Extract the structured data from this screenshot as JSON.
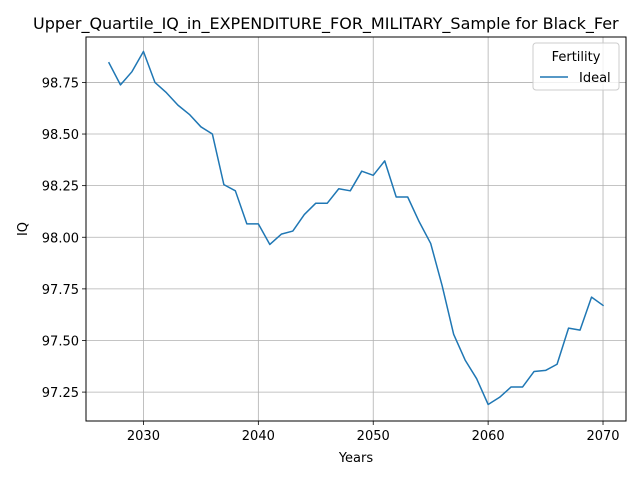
{
  "chart_data": {
    "type": "line",
    "title": "Upper_Quartile_IQ_in_EXPENDITURE_FOR_MILITARY_Sample for Black_Fer",
    "xlabel": "Years",
    "ylabel": "IQ",
    "xlim": [
      2025,
      2072
    ],
    "ylim": [
      97.11,
      98.97
    ],
    "xticks": [
      2030,
      2040,
      2050,
      2060,
      2070
    ],
    "yticks": [
      97.25,
      97.5,
      97.75,
      98.0,
      98.25,
      98.5,
      98.75
    ],
    "ytick_labels": [
      "97.25",
      "97.50",
      "97.75",
      "98.00",
      "98.25",
      "98.50",
      "98.75"
    ],
    "grid": true,
    "legend": {
      "title": "Fertility",
      "position": "top-right"
    },
    "series": [
      {
        "name": "Ideal",
        "color": "#1f77b4",
        "x": [
          2027,
          2028,
          2029,
          2030,
          2031,
          2032,
          2033,
          2034,
          2035,
          2036,
          2037,
          2038,
          2039,
          2040,
          2041,
          2042,
          2043,
          2044,
          2045,
          2046,
          2047,
          2048,
          2049,
          2050,
          2051,
          2052,
          2053,
          2054,
          2055,
          2056,
          2057,
          2058,
          2059,
          2060,
          2061,
          2062,
          2063,
          2064,
          2065,
          2066,
          2067,
          2068,
          2069,
          2070
        ],
        "y": [
          98.845,
          98.738,
          98.802,
          98.9,
          98.75,
          98.7,
          98.64,
          98.595,
          98.535,
          98.5,
          98.255,
          98.225,
          98.065,
          98.065,
          97.965,
          98.015,
          98.03,
          98.11,
          98.165,
          98.165,
          98.235,
          98.225,
          98.32,
          98.3,
          98.37,
          98.195,
          98.195,
          98.075,
          97.97,
          97.765,
          97.53,
          97.405,
          97.315,
          97.19,
          97.225,
          97.275,
          97.275,
          97.35,
          97.355,
          97.385,
          97.56,
          97.55,
          97.71,
          97.67
        ]
      }
    ]
  }
}
